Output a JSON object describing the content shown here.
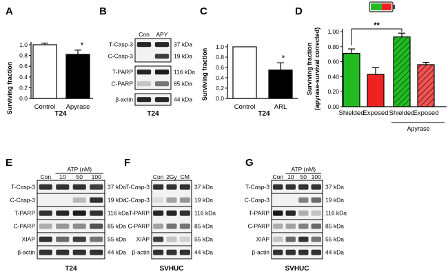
{
  "panels": {
    "A": {
      "letter": "A",
      "ylabel": "Surviving fraction",
      "cell_line": "T24",
      "categories": [
        "Control",
        "Apyrase"
      ],
      "significance": "*",
      "yticks": [
        "0.0",
        "0.2",
        "0.4",
        "0.6",
        "0.8",
        "1.0"
      ]
    },
    "B": {
      "letter": "B",
      "lanes": [
        "Con",
        "APY"
      ],
      "rows": [
        {
          "label": "T-Casp-3",
          "kda": "37 kDa"
        },
        {
          "label": "C-Casp-3",
          "kda": "19 kDa"
        },
        {
          "label": "T-PARP",
          "kda": "116 kDa"
        },
        {
          "label": "C-PARP",
          "kda": "85 kDa"
        },
        {
          "label": "β-actin",
          "kda": "44 kDa"
        }
      ],
      "cell_line": "T24"
    },
    "C": {
      "letter": "C",
      "ylabel": "Surviving fraction",
      "cell_line": "T24",
      "categories": [
        "Control",
        "ARL"
      ],
      "significance": "*",
      "yticks": [
        "0.0",
        "0.2",
        "0.4",
        "0.6",
        "0.8",
        "1.0"
      ]
    },
    "D": {
      "letter": "D",
      "ylabel": "Surviving fraction",
      "ylabel2": "(apyrase-survival corrected)",
      "categories": [
        "Shielded",
        "Exposed",
        "Shielded",
        "Exposed"
      ],
      "group_label": "Apyrase",
      "significance": "**",
      "yticks": [
        "0.00",
        "0.20",
        "0.40",
        "0.60",
        "0.80",
        "1.00"
      ]
    },
    "E": {
      "letter": "E",
      "treatment": "ATP (nM)",
      "lanes": [
        "Con",
        "10",
        "50",
        "100"
      ],
      "rows": [
        {
          "label": "T-Casp-3",
          "kda": "37 kDa"
        },
        {
          "label": "C-Casp-3",
          "kda": "19 kDa"
        },
        {
          "label": "T-PARP",
          "kda": "116 kDa"
        },
        {
          "label": "C-PARP",
          "kda": "85 kDa"
        },
        {
          "label": "XIAP",
          "kda": "55 kDa"
        },
        {
          "label": "β-actin",
          "kda": "44 kDa"
        }
      ],
      "cell_line": "T24"
    },
    "F": {
      "letter": "F",
      "lanes": [
        "Con",
        "2Gy",
        "CM"
      ],
      "rows": [
        {
          "label": "T-Casp-3",
          "kda": "37 kDa"
        },
        {
          "label": "C-Casp-3",
          "kda": "19 kDa"
        },
        {
          "label": "T-PARP",
          "kda": "116 kDa"
        },
        {
          "label": "C-PARP",
          "kda": "85 kDa"
        },
        {
          "label": "XIAP",
          "kda": "55 kDa"
        },
        {
          "label": "β-actin",
          "kda": "44 kDa"
        }
      ],
      "cell_line": "SVHUC"
    },
    "G": {
      "letter": "G",
      "treatment": "ATP (nM)",
      "lanes": [
        "Con",
        "10",
        "50",
        "100"
      ],
      "rows": [
        {
          "label": "T-Casp-3",
          "kda": "37 kDa"
        },
        {
          "label": "C-Casp-3",
          "kda": "19 kDa"
        },
        {
          "label": "T-PARP",
          "kda": "116 kDa"
        },
        {
          "label": "C-PARP",
          "kda": "85 kDa"
        },
        {
          "label": "XIAP",
          "kda": "55 kDa"
        },
        {
          "label": "β-actin",
          "kda": "44 kDa"
        }
      ],
      "cell_line": "SVHUC"
    }
  },
  "chart_data": [
    {
      "type": "bar",
      "panel": "A",
      "categories": [
        "Control",
        "Apyrase"
      ],
      "values": [
        1.0,
        0.82
      ],
      "errors": [
        0.03,
        0.08
      ],
      "colors": [
        "#ffffff",
        "#000000"
      ],
      "ylabel": "Surviving fraction",
      "xlabel": "T24",
      "ylim": [
        0,
        1.1
      ],
      "annotations": [
        "*"
      ]
    },
    {
      "type": "bar",
      "panel": "C",
      "categories": [
        "Control",
        "ARL"
      ],
      "values": [
        1.0,
        0.55
      ],
      "errors": [
        0.0,
        0.14
      ],
      "colors": [
        "#ffffff",
        "#000000"
      ],
      "ylabel": "Surviving fraction",
      "xlabel": "T24",
      "ylim": [
        0,
        1.1
      ],
      "annotations": [
        "*"
      ]
    },
    {
      "type": "bar",
      "panel": "D",
      "categories": [
        "Shielded",
        "Exposed",
        "Shielded",
        "Exposed"
      ],
      "values": [
        0.71,
        0.43,
        0.93,
        0.56
      ],
      "errors": [
        0.06,
        0.09,
        0.05,
        0.03
      ],
      "colors": [
        "#22bb22",
        "#ee2222",
        "#22bb22",
        "#ee2222"
      ],
      "hatched": [
        false,
        false,
        true,
        true
      ],
      "ylabel": "Surviving fraction (apyrase-survival corrected)",
      "ylim": [
        0,
        1.0
      ],
      "group_label": "Apyrase",
      "annotations": [
        "**"
      ]
    }
  ]
}
